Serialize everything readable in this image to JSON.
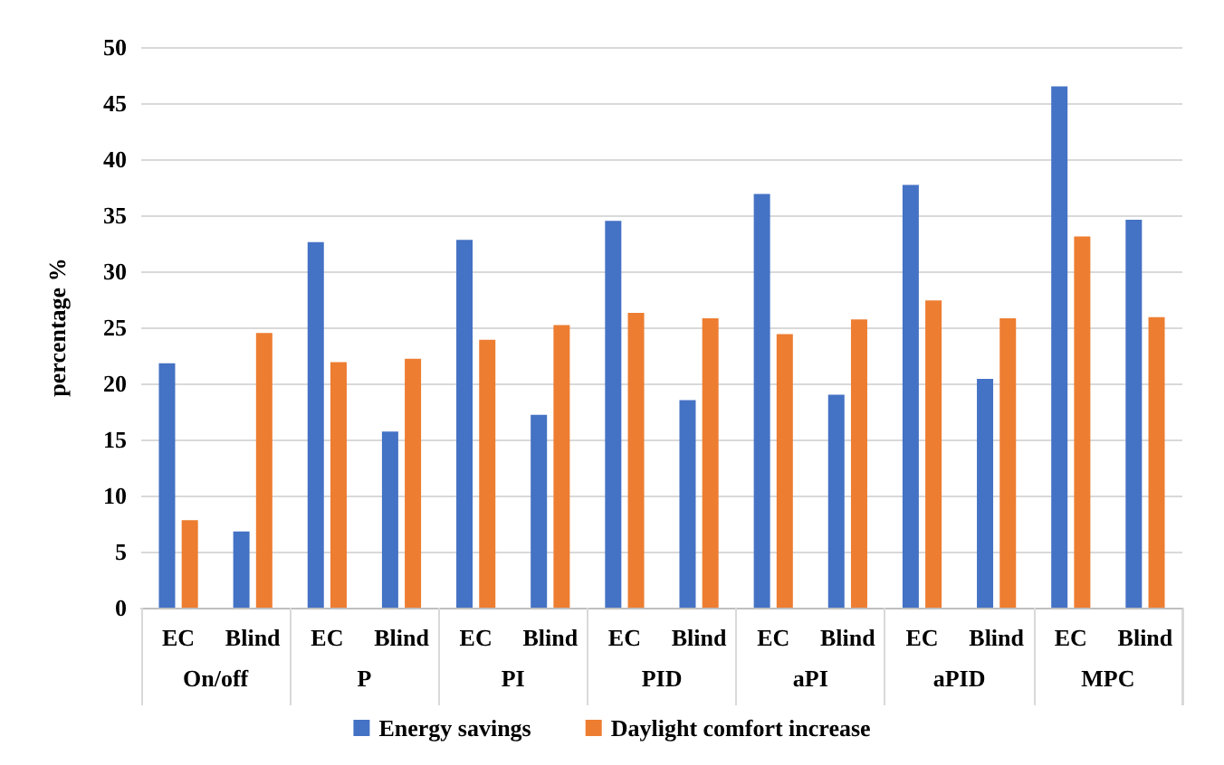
{
  "chart_data": {
    "type": "bar",
    "ylabel": "percentage %",
    "categories": [
      "EC",
      "Blind",
      "EC",
      "Blind",
      "EC",
      "Blind",
      "EC",
      "Blind",
      "EC",
      "Blind",
      "EC",
      "Blind",
      "EC",
      "Blind"
    ],
    "annotations": [
      "On/off",
      "P",
      "PI",
      "PID",
      "aPI",
      "aPID",
      "MPC"
    ],
    "series": [
      {
        "name": "Energy savings",
        "color": "#4472c4",
        "values": [
          21.8,
          6.8,
          32.6,
          15.7,
          32.8,
          17.2,
          34.5,
          18.5,
          36.9,
          19.0,
          37.7,
          20.4,
          46.5,
          34.6
        ]
      },
      {
        "name": "Daylight comfort increase",
        "color": "#ed7d31",
        "values": [
          7.8,
          24.5,
          21.9,
          22.2,
          23.9,
          25.2,
          26.3,
          25.8,
          24.4,
          25.7,
          27.4,
          25.8,
          33.1,
          25.9
        ]
      }
    ],
    "ylim": [
      0,
      50
    ],
    "yticks": [
      0,
      5,
      10,
      15,
      20,
      25,
      30,
      35,
      40,
      45,
      50
    ],
    "grid": "y",
    "legend": "bottom"
  }
}
